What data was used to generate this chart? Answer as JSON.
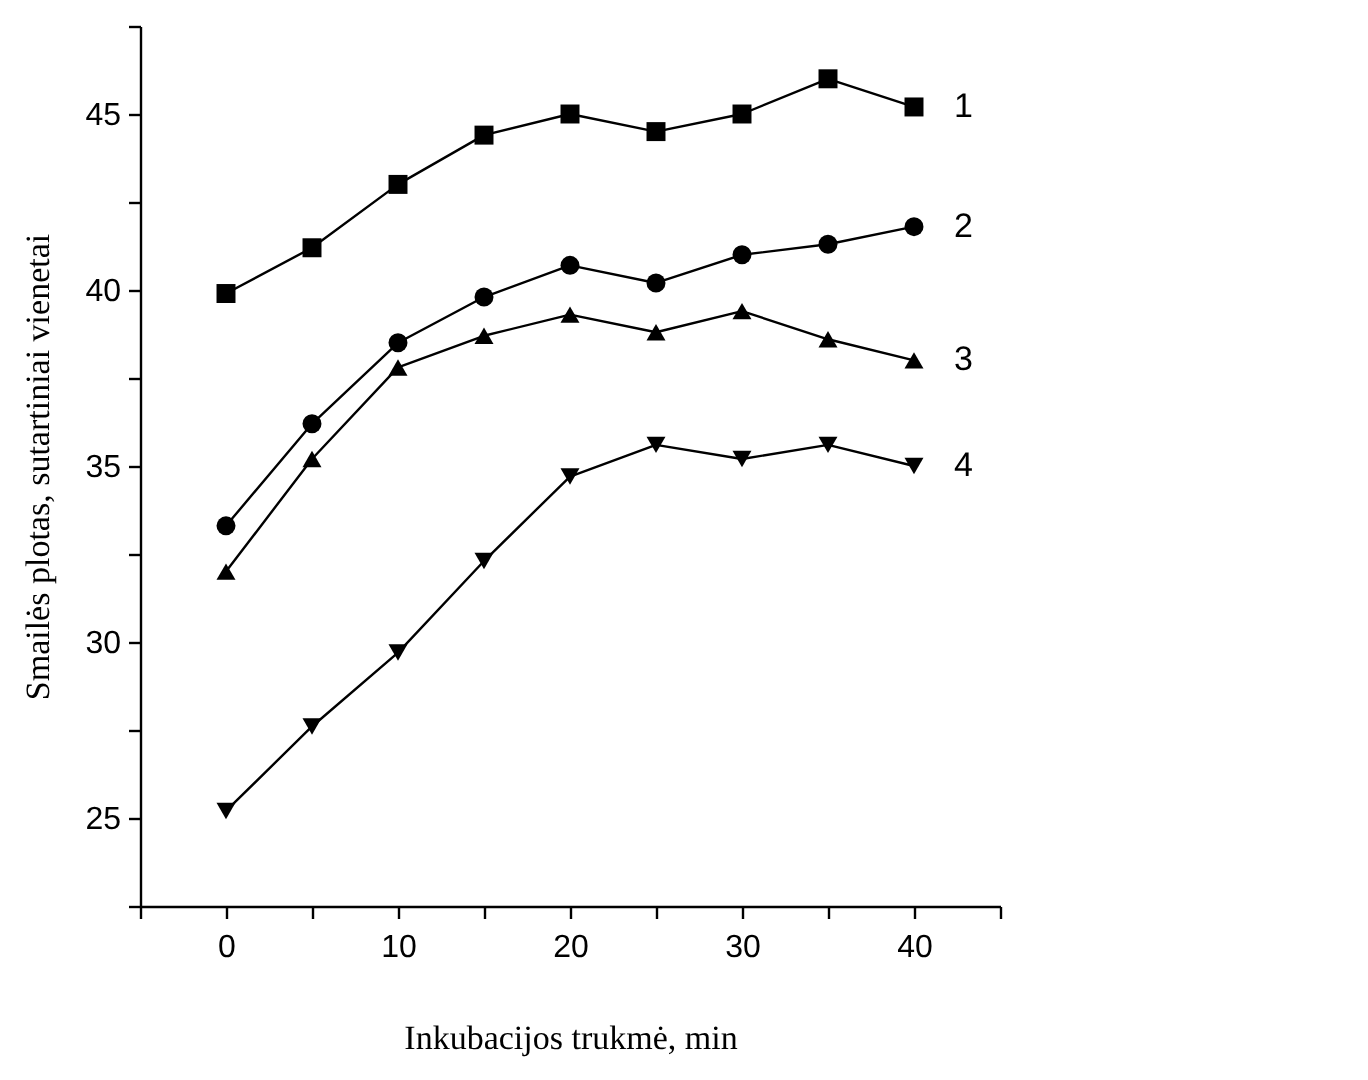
{
  "chart_data": {
    "type": "line",
    "xlabel": "Inkubacijos trukmė, min",
    "ylabel": "Smailės plotas, sutartiniai vienetai",
    "x": [
      0,
      5,
      10,
      15,
      20,
      25,
      30,
      35,
      40
    ],
    "xlim": [
      -5,
      45
    ],
    "xticks": [
      {
        "value": -5,
        "label": null
      },
      0,
      {
        "value": 5,
        "label": null
      },
      10,
      {
        "value": 15,
        "label": null
      },
      20,
      {
        "value": 25,
        "label": null
      },
      30,
      {
        "value": 35,
        "label": null
      },
      40,
      {
        "value": 45,
        "label": null
      }
    ],
    "ylim": [
      22.5,
      47.5
    ],
    "yticks": [
      {
        "value": 22.5,
        "label": null
      },
      25,
      {
        "value": 27.5,
        "label": null
      },
      30,
      {
        "value": 32.5,
        "label": null
      },
      35,
      {
        "value": 37.5,
        "label": null
      },
      40,
      {
        "value": 42.5,
        "label": null
      },
      45,
      {
        "value": 47.5,
        "label": null
      }
    ],
    "grid": false,
    "legend": false,
    "line_style": "solid",
    "series": [
      {
        "name": "1",
        "color": "#000000",
        "marker": "square",
        "values": [
          39.9,
          41.2,
          43.0,
          44.4,
          45.0,
          44.5,
          45.0,
          46.0,
          45.2
        ]
      },
      {
        "name": "2",
        "color": "#000000",
        "marker": "circle",
        "values": [
          33.3,
          36.2,
          38.5,
          39.8,
          40.7,
          40.2,
          41.0,
          41.3,
          41.8
        ]
      },
      {
        "name": "3",
        "color": "#000000",
        "marker": "triangle",
        "values": [
          32.0,
          35.2,
          37.8,
          38.7,
          39.3,
          38.8,
          39.4,
          38.6,
          38.0
        ]
      },
      {
        "name": "4",
        "color": "#000000",
        "marker": "triangle-down",
        "values": [
          25.2,
          27.6,
          29.7,
          32.3,
          34.7,
          35.6,
          35.2,
          35.6,
          35.0
        ]
      }
    ]
  }
}
